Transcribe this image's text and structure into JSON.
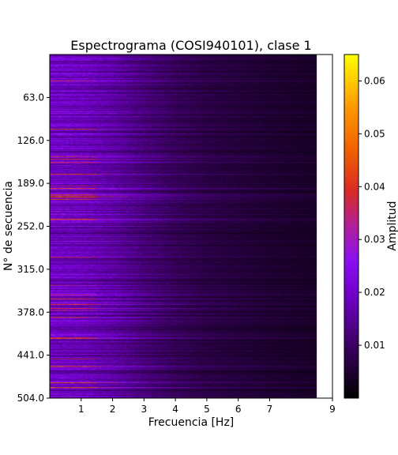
{
  "chart_data": {
    "type": "heatmap",
    "title": "Espectrograma (COSI940101), clase 1",
    "xlabel": "Frecuencia [Hz]",
    "ylabel": "N° de secuencia",
    "colorbar_label": "Amplitud",
    "colormap": "gnuplot",
    "x_range": [
      0,
      9
    ],
    "x_ticks": [
      "1",
      "2",
      "3",
      "4",
      "5",
      "6",
      "7",
      "9"
    ],
    "x_tick_values": [
      1,
      2,
      3,
      4,
      5,
      6,
      7,
      9
    ],
    "y_range": [
      504,
      0
    ],
    "y_ticks": [
      "63.0",
      "126.0",
      "189.0",
      "252.0",
      "315.0",
      "378.0",
      "441.0",
      "504.0"
    ],
    "y_tick_values": [
      63,
      126,
      189,
      252,
      315,
      378,
      441,
      504
    ],
    "colorbar_range": [
      0,
      0.065
    ],
    "colorbar_ticks": [
      "0.01",
      "0.02",
      "0.03",
      "0.04",
      "0.05",
      "0.06"
    ],
    "colorbar_tick_values": [
      0.01,
      0.02,
      0.03,
      0.04,
      0.05,
      0.06
    ],
    "data_x_extent": [
      0,
      8.5
    ],
    "rows": 504,
    "amplitude_profile": {
      "description": "amplitude decays with frequency",
      "frequency_hz": [
        0,
        1,
        2,
        3,
        4,
        5,
        6,
        7,
        8.5
      ],
      "typical_amplitude": [
        0.02,
        0.019,
        0.016,
        0.012,
        0.009,
        0.007,
        0.006,
        0.005,
        0.004
      ]
    }
  }
}
